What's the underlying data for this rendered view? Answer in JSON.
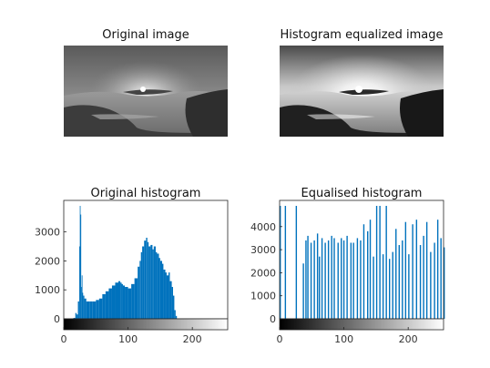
{
  "figure": {
    "titles": {
      "original_image": "Original image",
      "equalized_image": "Histogram equalized image",
      "original_hist": "Original histogram",
      "equalized_hist": "Equalised histogram"
    }
  },
  "chart_data": [
    {
      "type": "bar",
      "title": "Original histogram",
      "xlabel": "",
      "ylabel": "",
      "xlim": [
        0,
        255
      ],
      "ylim": [
        0,
        3900
      ],
      "x_ticks": [
        "0",
        "100",
        "200"
      ],
      "y_ticks": [
        "0",
        "1000",
        "2000",
        "3000"
      ],
      "color": "#0072bd",
      "series": [
        {
          "x": [
            10,
            15,
            18,
            20,
            22,
            24,
            25,
            26,
            27,
            28,
            29,
            30,
            32,
            35,
            40,
            45,
            50,
            55,
            60,
            65,
            70,
            75,
            80,
            85,
            88,
            90,
            92,
            95,
            100,
            105,
            110,
            115,
            118,
            120,
            122,
            125,
            128,
            130,
            132,
            135,
            138,
            140,
            143,
            145,
            148,
            150,
            153,
            155,
            158,
            160,
            163,
            165,
            168,
            170,
            172,
            174,
            176,
            180,
            190,
            200,
            255
          ],
          "values": [
            0,
            30,
            200,
            150,
            600,
            2500,
            3900,
            3600,
            1100,
            1500,
            900,
            800,
            700,
            600,
            600,
            600,
            650,
            700,
            850,
            950,
            1050,
            1150,
            1250,
            1300,
            1250,
            1200,
            1150,
            1100,
            1050,
            1200,
            1400,
            1800,
            2000,
            2300,
            2500,
            2700,
            2800,
            2650,
            2500,
            2550,
            2400,
            2500,
            2300,
            2250,
            2100,
            2000,
            1900,
            1700,
            1600,
            1500,
            1600,
            1300,
            1100,
            800,
            300,
            100,
            10,
            0,
            0,
            0,
            0
          ]
        }
      ],
      "colorbar": "grayscale 0-255"
    },
    {
      "type": "bar",
      "title": "Equalised histogram",
      "xlabel": "",
      "ylabel": "",
      "xlim": [
        0,
        255
      ],
      "ylim": [
        0,
        4900
      ],
      "x_ticks": [
        "0",
        "100",
        "200"
      ],
      "y_ticks": [
        "0",
        "1000",
        "2000",
        "3000",
        "4000"
      ],
      "color": "#0072bd",
      "series": [
        {
          "x": [
            0,
            8,
            25,
            36,
            40,
            43,
            48,
            53,
            58,
            61,
            65,
            70,
            75,
            80,
            84,
            90,
            95,
            99,
            104,
            110,
            114,
            120,
            125,
            130,
            136,
            140,
            145,
            150,
            155,
            160,
            165,
            170,
            175,
            180,
            185,
            190,
            195,
            200,
            206,
            212,
            218,
            223,
            228,
            234,
            240,
            245,
            250,
            255
          ],
          "values": [
            4900,
            4900,
            4900,
            2400,
            3400,
            3600,
            3300,
            3400,
            3700,
            2700,
            3500,
            3300,
            3400,
            3600,
            3500,
            3300,
            3500,
            3400,
            3600,
            3300,
            3300,
            3500,
            3400,
            4100,
            3800,
            4300,
            2700,
            4900,
            4900,
            2800,
            4900,
            2600,
            2900,
            3900,
            3200,
            3400,
            4200,
            2800,
            4100,
            4300,
            3200,
            3600,
            4200,
            2900,
            3300,
            4300,
            3500,
            3100
          ]
        }
      ],
      "colorbar": "grayscale 0-255"
    }
  ]
}
